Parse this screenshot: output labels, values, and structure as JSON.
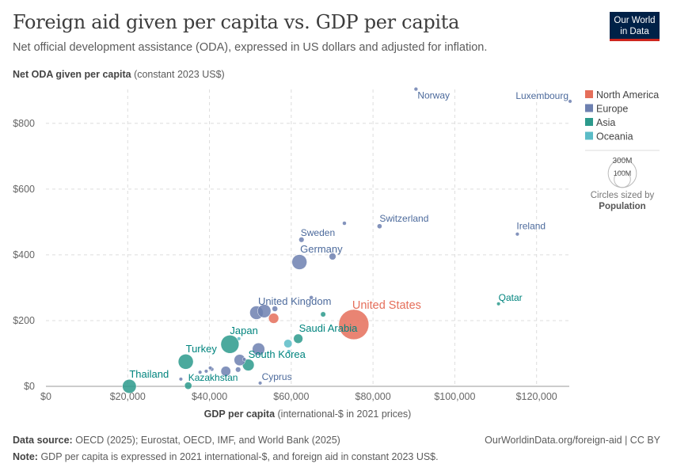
{
  "header": {
    "title": "Foreign aid given per capita vs. GDP per capita",
    "subtitle": "Net official development assistance (ODA), expressed in US dollars and adjusted for inflation.",
    "logo": "Our World in Data"
  },
  "footer": {
    "source_label": "Data source:",
    "source": "OECD (2025); Eurostat, OECD, IMF, and World Bank (2025)",
    "url": "OurWorldinData.org/foreign-aid | CC BY",
    "note_label": "Note:",
    "note": "GDP per capita is expressed in 2021 international-$, and foreign aid in constant 2023 US$."
  },
  "legend": {
    "items": [
      {
        "label": "North America",
        "color": "#e56e5a"
      },
      {
        "label": "Europe",
        "color": "#6d80b0"
      },
      {
        "label": "Asia",
        "color": "#2c9a8c"
      },
      {
        "label": "Oceania",
        "color": "#5bbcc7"
      }
    ],
    "size_legend": {
      "large": "300M",
      "small": "100M",
      "caption": "Circles sized by",
      "variable": "Population"
    }
  },
  "chart_data": {
    "type": "scatter",
    "title": "Foreign aid given per capita vs. GDP per capita",
    "xlabel": "GDP per capita",
    "xlabel_unit": "(international-$ in 2021 prices)",
    "ylabel": "Net ODA given per capita",
    "ylabel_unit": "(constant 2023 US$)",
    "xlim": [
      0,
      128000
    ],
    "ylim": [
      0,
      900
    ],
    "x_ticks": [
      0,
      20000,
      40000,
      60000,
      80000,
      100000,
      120000
    ],
    "x_tick_labels": [
      "$0",
      "$20,000",
      "$40,000",
      "$60,000",
      "$80,000",
      "$100,000",
      "$120,000"
    ],
    "y_ticks": [
      0,
      200,
      400,
      600,
      800
    ],
    "y_tick_labels": [
      "$0",
      "$200",
      "$400",
      "$600",
      "$800"
    ],
    "grid": true,
    "legend_position": "right",
    "points": [
      {
        "label": "Norway",
        "region": "Europe",
        "x": 90500,
        "y": 904,
        "pop": 5.5
      },
      {
        "label": "Luxembourg",
        "region": "Europe",
        "x": 128200,
        "y": 867,
        "pop": 0.7
      },
      {
        "label": "Switzerland",
        "region": "Europe",
        "x": 81600,
        "y": 487,
        "pop": 8.8
      },
      {
        "label": "Ireland",
        "region": "Europe",
        "x": 115300,
        "y": 463,
        "pop": 5.2
      },
      {
        "label": "Sweden",
        "region": "Europe",
        "x": 62500,
        "y": 446,
        "pop": 10.5
      },
      {
        "label": "",
        "region": "Europe",
        "x": 73000,
        "y": 496,
        "pop": 5.9
      },
      {
        "label": "Germany",
        "region": "Europe",
        "x": 62000,
        "y": 378,
        "pop": 84
      },
      {
        "label": "",
        "region": "Europe",
        "x": 70100,
        "y": 395,
        "pop": 17.8
      },
      {
        "label": "Qatar",
        "region": "Asia",
        "x": 110700,
        "y": 251,
        "pop": 2.9
      },
      {
        "label": "United States",
        "region": "North America",
        "x": 75300,
        "y": 188,
        "pop": 340
      },
      {
        "label": "United Kingdom",
        "region": "Europe",
        "x": 51500,
        "y": 224,
        "pop": 68
      },
      {
        "label": "",
        "region": "Europe",
        "x": 53400,
        "y": 229,
        "pop": 66
      },
      {
        "label": "",
        "region": "North America",
        "x": 55700,
        "y": 207,
        "pop": 39
      },
      {
        "label": "",
        "region": "Asia",
        "x": 67800,
        "y": 219,
        "pop": 10
      },
      {
        "label": "",
        "region": "Europe",
        "x": 64900,
        "y": 270,
        "pop": 5.9
      },
      {
        "label": "",
        "region": "Europe",
        "x": 56000,
        "y": 236,
        "pop": 11.7
      },
      {
        "label": "Saudi Arabia",
        "region": "Asia",
        "x": 61700,
        "y": 145,
        "pop": 33
      },
      {
        "label": "",
        "region": "Oceania",
        "x": 59200,
        "y": 130,
        "pop": 26
      },
      {
        "label": "",
        "region": "Oceania",
        "x": 59400,
        "y": 106,
        "pop": 5.2
      },
      {
        "label": "Japan",
        "region": "Asia",
        "x": 45000,
        "y": 128,
        "pop": 124
      },
      {
        "label": "",
        "region": "Oceania",
        "x": 47200,
        "y": 145,
        "pop": 1
      },
      {
        "label": "",
        "region": "Europe",
        "x": 52000,
        "y": 113,
        "pop": 59
      },
      {
        "label": "Turkey",
        "region": "Asia",
        "x": 34200,
        "y": 75,
        "pop": 85
      },
      {
        "label": "South Korea",
        "region": "Asia",
        "x": 49500,
        "y": 65,
        "pop": 52
      },
      {
        "label": "",
        "region": "Europe",
        "x": 47400,
        "y": 80,
        "pop": 48
      },
      {
        "label": "",
        "region": "Europe",
        "x": 47000,
        "y": 51,
        "pop": 10.4
      },
      {
        "label": "",
        "region": "Europe",
        "x": 44000,
        "y": 46,
        "pop": 37
      },
      {
        "label": "",
        "region": "Europe",
        "x": 48500,
        "y": 82,
        "pop": 3
      },
      {
        "label": "",
        "region": "Europe",
        "x": 40600,
        "y": 52,
        "pop": 5.4
      },
      {
        "label": "",
        "region": "Europe",
        "x": 40200,
        "y": 56,
        "pop": 2.1
      },
      {
        "label": "",
        "region": "Europe",
        "x": 37700,
        "y": 43,
        "pop": 2.8
      },
      {
        "label": "",
        "region": "Europe",
        "x": 39200,
        "y": 46,
        "pop": 1.4
      },
      {
        "label": "Kazakhstan",
        "region": "Asia",
        "x": 34800,
        "y": 2,
        "pop": 20
      },
      {
        "label": "Thailand",
        "region": "Asia",
        "x": 20400,
        "y": 0,
        "pop": 72
      },
      {
        "label": "",
        "region": "Europe",
        "x": 33000,
        "y": 22,
        "pop": 3.8
      },
      {
        "label": "Cyprus",
        "region": "Europe",
        "x": 52400,
        "y": 10,
        "pop": 1.3
      }
    ]
  }
}
